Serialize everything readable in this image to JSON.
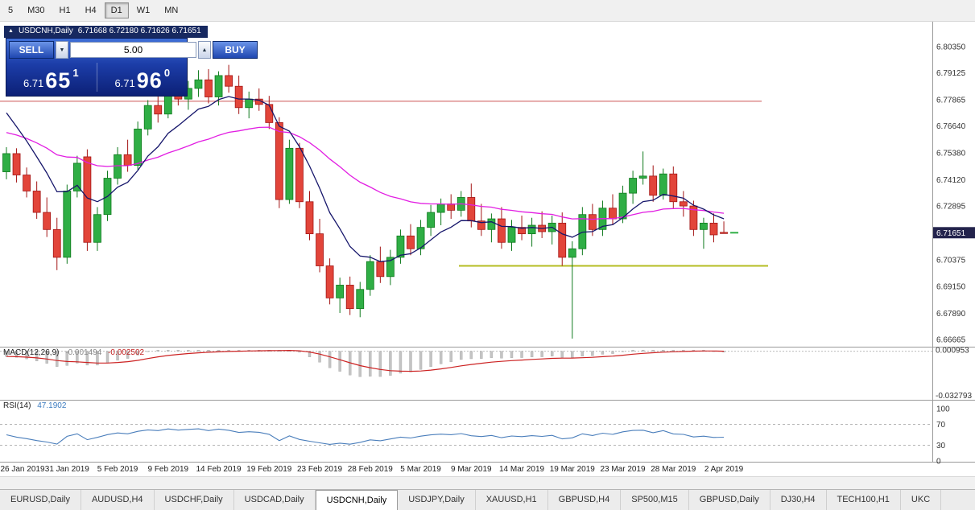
{
  "toolbar": {
    "timeframes": [
      "5",
      "M30",
      "H1",
      "H4",
      "D1",
      "W1",
      "MN"
    ],
    "active": "D1"
  },
  "chart": {
    "title": {
      "collapse_icon": "▲",
      "symbol": "USDCNH,Daily",
      "ohlc": "6.71668 6.72180 6.71626 6.71651"
    },
    "price_badge": "6.71651",
    "trade_panel": {
      "sell_label": "SELL",
      "buy_label": "BUY",
      "volume": "5.00",
      "dec_icon": "▼",
      "inc_icon": "▲",
      "sell_price": {
        "prefix": "6.71",
        "big": "65",
        "sup": "1"
      },
      "buy_price": {
        "prefix": "6.71",
        "big": "96",
        "sup": "0"
      }
    }
  },
  "indicators": {
    "macd_name": "MACD(12,26,9)",
    "macd_value": "-0.001494",
    "macd_signal_value": "-0.002502",
    "rsi_name": "RSI(14)",
    "rsi_value": "47.1902"
  },
  "tabs": {
    "active_index": 4,
    "items": [
      "EURUSD,Daily",
      "AUDUSD,H4",
      "USDCHF,Daily",
      "USDCAD,Daily",
      "USDCNH,Daily",
      "USDJPY,Daily",
      "XAUUSD,H1",
      "GBPUSD,H4",
      "SP500,M15",
      "GBPUSD,Daily",
      "DJ30,H4",
      "TECH100,H1",
      "UKC"
    ]
  },
  "chart_data": {
    "type": "candlestick",
    "symbol": "USDCNH",
    "timeframe": "Daily",
    "ohlc_display": {
      "open": "6.71668",
      "high": "6.72180",
      "low": "6.71626",
      "close": "6.71651"
    },
    "price_ylim": [
      6.6632,
      6.8148
    ],
    "y_ticks": [
      "6.80350",
      "6.79125",
      "6.77865",
      "6.76640",
      "6.75380",
      "6.74120",
      "6.72895",
      "6.70375",
      "6.69150",
      "6.67890",
      "6.66665"
    ],
    "x_labels": [
      "26 Jan 2019",
      "31 Jan 2019",
      "5 Feb 2019",
      "9 Feb 2019",
      "14 Feb 2019",
      "19 Feb 2019",
      "23 Feb 2019",
      "28 Feb 2019",
      "5 Mar 2019",
      "9 Mar 2019",
      "14 Mar 2019",
      "19 Mar 2019",
      "23 Mar 2019",
      "28 Mar 2019",
      "2 Apr 2019"
    ],
    "x_label_indices": [
      1,
      6,
      11,
      16,
      21,
      26,
      31,
      36,
      41,
      46,
      51,
      56,
      61,
      66,
      71
    ],
    "bull_color": "#2fae45",
    "bull_stroke": "#0f7a1d",
    "bear_color": "#e2453a",
    "bear_stroke": "#a31515",
    "candles": [
      [
        6.745,
        6.7565,
        6.7415,
        6.7535
      ],
      [
        6.7535,
        6.756,
        6.74,
        6.7435
      ],
      [
        6.7435,
        6.747,
        6.733,
        6.736
      ],
      [
        6.736,
        6.7405,
        6.723,
        6.726
      ],
      [
        6.726,
        6.733,
        6.7145,
        6.718
      ],
      [
        6.718,
        6.7235,
        6.699,
        6.705
      ],
      [
        6.705,
        6.739,
        6.702,
        6.736
      ],
      [
        6.736,
        6.7525,
        6.733,
        6.749
      ],
      [
        6.752,
        6.7555,
        6.708,
        6.712
      ],
      [
        6.712,
        6.7285,
        6.708,
        6.725
      ],
      [
        6.725,
        6.7455,
        6.722,
        6.742
      ],
      [
        6.742,
        6.7565,
        6.739,
        6.753
      ],
      [
        6.753,
        6.76,
        6.745,
        6.748
      ],
      [
        6.748,
        6.7685,
        6.746,
        6.765
      ],
      [
        6.765,
        6.7785,
        6.762,
        6.776
      ],
      [
        6.776,
        6.7825,
        6.768,
        6.772
      ],
      [
        6.772,
        6.788,
        6.77,
        6.785
      ],
      [
        6.785,
        6.7895,
        6.776,
        6.779
      ],
      [
        6.779,
        6.7875,
        6.774,
        6.784
      ],
      [
        6.784,
        6.7925,
        6.78,
        6.788
      ],
      [
        6.788,
        6.793,
        6.777,
        6.78
      ],
      [
        6.78,
        6.792,
        6.776,
        6.79
      ],
      [
        6.79,
        6.795,
        6.782,
        6.785
      ],
      [
        6.785,
        6.79,
        6.772,
        6.775
      ],
      [
        6.775,
        6.7825,
        6.77,
        6.779
      ],
      [
        6.779,
        6.784,
        6.7735,
        6.7765
      ],
      [
        6.7765,
        6.7805,
        6.765,
        6.768
      ],
      [
        6.768,
        6.7705,
        6.728,
        6.732
      ],
      [
        6.732,
        6.76,
        6.73,
        6.756
      ],
      [
        6.756,
        6.7585,
        6.728,
        6.731
      ],
      [
        6.731,
        6.736,
        6.713,
        6.716
      ],
      [
        6.716,
        6.723,
        6.698,
        6.701
      ],
      [
        6.701,
        6.7045,
        6.683,
        6.686
      ],
      [
        6.686,
        6.6955,
        6.679,
        6.692
      ],
      [
        6.692,
        6.696,
        6.678,
        6.681
      ],
      [
        6.681,
        6.6935,
        6.677,
        6.69
      ],
      [
        6.69,
        6.706,
        6.687,
        6.703
      ],
      [
        6.703,
        6.71,
        6.693,
        6.696
      ],
      [
        6.696,
        6.7085,
        6.692,
        6.705
      ],
      [
        6.705,
        6.718,
        6.702,
        6.715
      ],
      [
        6.715,
        6.7205,
        6.706,
        6.709
      ],
      [
        6.709,
        6.7225,
        6.706,
        6.719
      ],
      [
        6.719,
        6.7295,
        6.715,
        6.726
      ],
      [
        6.726,
        6.7325,
        6.72,
        6.73
      ],
      [
        6.73,
        6.7345,
        6.723,
        6.727
      ],
      [
        6.727,
        6.736,
        6.724,
        6.733
      ],
      [
        6.733,
        6.7395,
        6.719,
        6.722
      ],
      [
        6.722,
        6.73,
        6.715,
        6.718
      ],
      [
        6.718,
        6.7255,
        6.712,
        6.723
      ],
      [
        6.723,
        6.7285,
        6.709,
        6.712
      ],
      [
        6.712,
        6.7225,
        6.708,
        6.719
      ],
      [
        6.719,
        6.7245,
        6.713,
        6.716
      ],
      [
        6.716,
        6.7235,
        6.71,
        6.72
      ],
      [
        6.72,
        6.7265,
        6.714,
        6.717
      ],
      [
        6.717,
        6.7245,
        6.711,
        6.721
      ],
      [
        6.721,
        6.726,
        6.701,
        6.705
      ],
      [
        6.705,
        6.7125,
        6.667,
        6.709
      ],
      [
        6.709,
        6.7285,
        6.706,
        6.725
      ],
      [
        6.725,
        6.73,
        6.715,
        6.718
      ],
      [
        6.718,
        6.7315,
        6.715,
        6.728
      ],
      [
        6.728,
        6.7345,
        6.72,
        6.723
      ],
      [
        6.723,
        6.7385,
        6.721,
        6.735
      ],
      [
        6.735,
        6.7455,
        6.73,
        6.742
      ],
      [
        6.742,
        6.7545,
        6.739,
        6.743
      ],
      [
        6.743,
        6.748,
        6.731,
        6.734
      ],
      [
        6.734,
        6.7465,
        6.732,
        6.744
      ],
      [
        6.744,
        6.7475,
        6.728,
        6.731
      ],
      [
        6.731,
        6.736,
        6.724,
        6.729
      ],
      [
        6.729,
        6.7315,
        6.715,
        6.718
      ],
      [
        6.718,
        6.7235,
        6.709,
        6.721
      ],
      [
        6.721,
        6.7255,
        6.712,
        6.7155
      ],
      [
        6.71668,
        6.7218,
        6.71626,
        6.71651
      ]
    ],
    "ma_fast": {
      "period": 8,
      "seed": 6.778,
      "color": "#16166b"
    },
    "ma_slow": {
      "period": 32,
      "seed": 6.764,
      "color": "#e21ee2"
    },
    "hlines": [
      {
        "price": 6.778,
        "color": "#cc5555",
        "width": 1,
        "x_from": 0,
        "x_to": 946
      },
      {
        "price": 6.701,
        "color": "#b5bd22",
        "width": 2,
        "x_from": 570,
        "x_to": 954
      }
    ],
    "price_marker": {
      "price": 6.7165,
      "color": "#2fae45"
    },
    "macd": {
      "params": [
        12,
        26,
        9
      ],
      "value": -0.001494,
      "signal": -0.002502,
      "ylim": [
        -0.0355,
        0.0028
      ],
      "seed_fast": 6.756,
      "seed_slow": 6.76,
      "scale_top_label": "0.000953",
      "scale_bottom_label": "-0.032793",
      "hist_color": "#c4c4c4",
      "signal_color": "#cc2222"
    },
    "rsi": {
      "period": 14,
      "value": 47.1902,
      "levels": [
        70,
        30
      ],
      "axis_labels": [
        "100",
        "70",
        "30",
        "0"
      ],
      "line_color": "#4a7ebb"
    }
  }
}
